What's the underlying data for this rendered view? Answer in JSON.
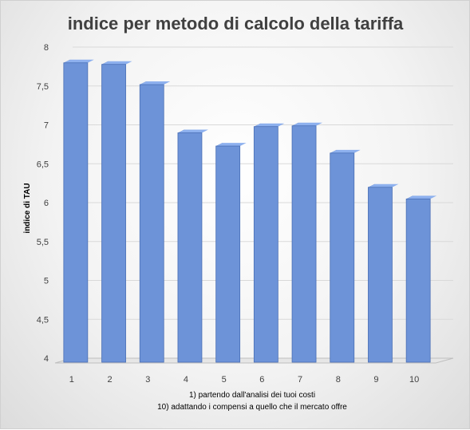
{
  "chart_data": {
    "type": "bar",
    "title": "indice per metodo di calcolo della tariffa",
    "ylabel": "indice di TAU",
    "xlabel_lines": [
      "1) partendo dall'analisi dei tuoi costi",
      "10) adattando i compensi a quello che il mercato offre"
    ],
    "categories": [
      "1",
      "2",
      "3",
      "4",
      "5",
      "6",
      "7",
      "8",
      "9",
      "10"
    ],
    "values": [
      7.9,
      7.88,
      7.62,
      7.0,
      6.83,
      7.08,
      7.09,
      6.74,
      6.3,
      6.15
    ],
    "ylim": [
      4,
      8
    ],
    "yticks": [
      "4",
      "4,5",
      "5",
      "5,5",
      "6",
      "6,5",
      "7",
      "7,5",
      "8"
    ],
    "grid": true,
    "legend": "none",
    "colors": {
      "bar_front": "#6d93d8",
      "bar_front_light": "#7fa3e6",
      "bar_side": "#2f4f8f",
      "bar_top": "#8db0ee",
      "floor": "#e6e6e6",
      "floor_edge": "#bfbfbf"
    }
  }
}
